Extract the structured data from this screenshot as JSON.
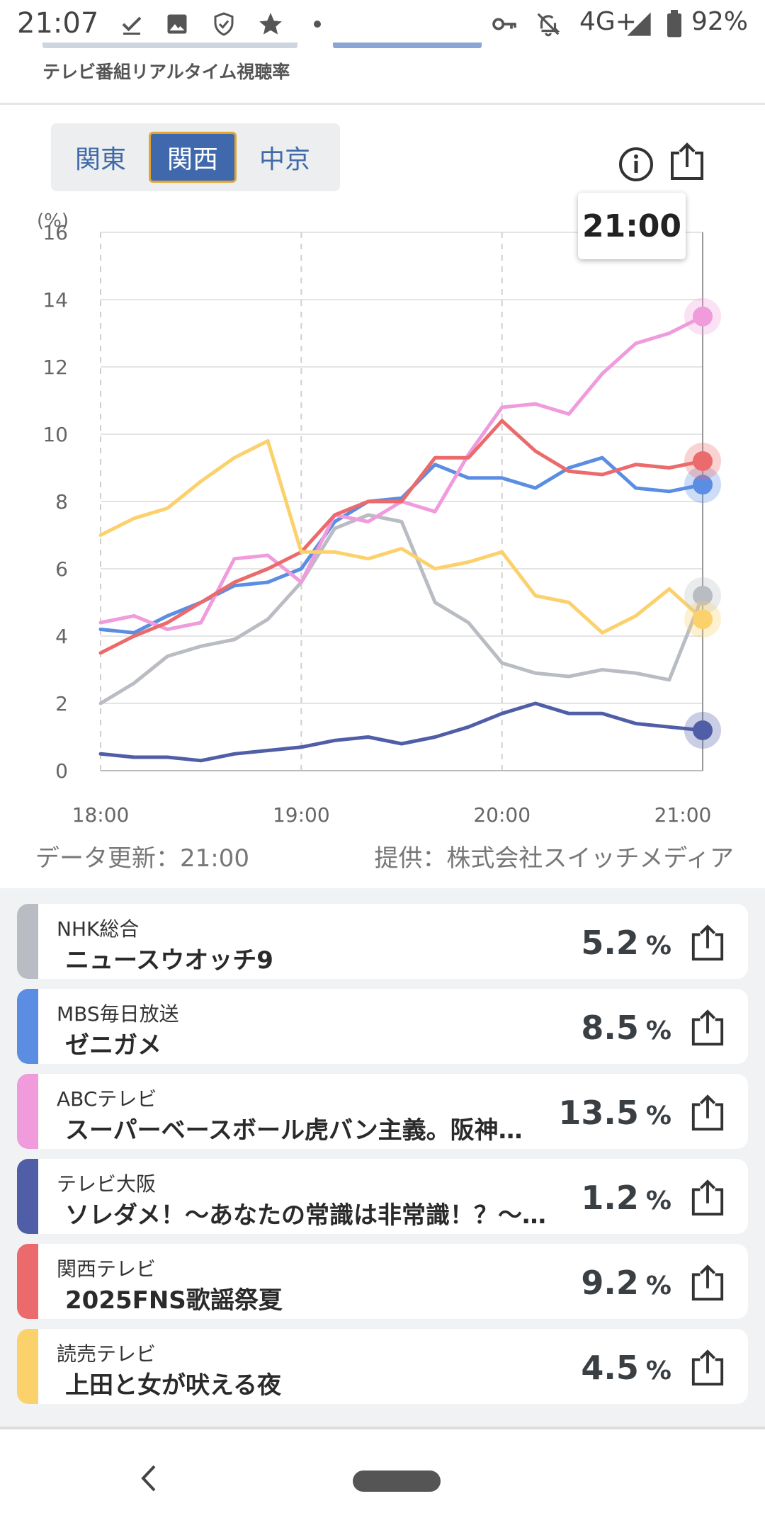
{
  "status_bar": {
    "time": "21:07",
    "network": "4G+",
    "battery": "92%",
    "left_icons": [
      "download-done-icon",
      "image-icon",
      "shield-icon",
      "star-icon",
      "dot-icon"
    ],
    "right_icons": [
      "key-icon",
      "bell-off-icon",
      "signal-icon",
      "battery-icon"
    ]
  },
  "header": {
    "subtitle": "テレビ番組リアルタイム視聴率"
  },
  "region_tabs": [
    {
      "label": "関東",
      "active": false
    },
    {
      "label": "関西",
      "active": true
    },
    {
      "label": "中京",
      "active": false
    }
  ],
  "tooltip_time": "21:00",
  "chart_data": {
    "type": "line",
    "ylabel": "(%)",
    "ylim": [
      0,
      16
    ],
    "y_ticks": [
      "16",
      "14",
      "12",
      "10",
      "8",
      "6",
      "4",
      "2",
      "0"
    ],
    "x_ticks": [
      "18:00",
      "19:00",
      "20:00",
      "21:00"
    ],
    "x": [
      "18:00",
      "18:10",
      "18:20",
      "18:30",
      "18:40",
      "18:50",
      "19:00",
      "19:10",
      "19:20",
      "19:30",
      "19:40",
      "19:50",
      "20:00",
      "20:10",
      "20:20",
      "20:30",
      "20:40",
      "20:50",
      "21:00"
    ],
    "series": [
      {
        "color": "#b9bcc2",
        "values": [
          2.0,
          2.6,
          3.4,
          3.7,
          3.9,
          4.5,
          5.6,
          7.2,
          7.6,
          7.4,
          5.0,
          4.4,
          3.2,
          2.9,
          2.8,
          3.0,
          2.9,
          2.7,
          5.2
        ]
      },
      {
        "color": "#5b8de3",
        "values": [
          4.2,
          4.1,
          4.6,
          5.0,
          5.5,
          5.6,
          6.0,
          7.4,
          8.0,
          8.1,
          9.1,
          8.7,
          8.7,
          8.4,
          9.0,
          9.3,
          8.4,
          8.3,
          8.5
        ]
      },
      {
        "color": "#f09bdc",
        "values": [
          4.4,
          4.6,
          4.2,
          4.4,
          6.3,
          6.4,
          5.6,
          7.6,
          7.4,
          8.0,
          7.7,
          9.4,
          10.8,
          10.9,
          10.6,
          11.8,
          12.7,
          13.0,
          13.5
        ]
      },
      {
        "color": "#4f5ea6",
        "values": [
          0.5,
          0.4,
          0.4,
          0.3,
          0.5,
          0.6,
          0.7,
          0.9,
          1.0,
          0.8,
          1.0,
          1.3,
          1.7,
          2.0,
          1.7,
          1.7,
          1.4,
          1.3,
          1.2
        ]
      },
      {
        "color": "#eb6a6b",
        "values": [
          3.5,
          4.0,
          4.4,
          5.0,
          5.6,
          6.0,
          6.5,
          7.6,
          8.0,
          8.0,
          9.3,
          9.3,
          10.4,
          9.5,
          8.9,
          8.8,
          9.1,
          9.0,
          9.2
        ]
      },
      {
        "color": "#fbd16b",
        "values": [
          7.0,
          7.5,
          7.8,
          8.6,
          9.3,
          9.8,
          6.5,
          6.5,
          6.3,
          6.6,
          6.0,
          6.2,
          6.5,
          5.2,
          5.0,
          4.1,
          4.6,
          5.4,
          4.5
        ]
      }
    ]
  },
  "footer": {
    "updated": "データ更新：21:00",
    "provider": "提供：株式会社スイッチメディア"
  },
  "programs": [
    {
      "channel": "NHK総合",
      "program": "ニュースウオッチ9",
      "rating": "5.2",
      "unit": "%",
      "color": "#b9bcc2"
    },
    {
      "channel": "MBS毎日放送",
      "program": "ゼニガメ",
      "rating": "8.5",
      "unit": "%",
      "color": "#5b8de3"
    },
    {
      "channel": "ABCテレビ",
      "program": "スーパーベースボール虎バン主義。阪神…",
      "rating": "13.5",
      "unit": "%",
      "color": "#f09bdc"
    },
    {
      "channel": "テレビ大阪",
      "program": "ソレダメ！～あなたの常識は非常識！？～…",
      "rating": "1.2",
      "unit": "%",
      "color": "#4f5ea6"
    },
    {
      "channel": "関西テレビ",
      "program": "2025FNS歌謡祭夏",
      "rating": "9.2",
      "unit": "%",
      "color": "#eb6a6b"
    },
    {
      "channel": "読売テレビ",
      "program": "上田と女が吠える夜",
      "rating": "4.5",
      "unit": "%",
      "color": "#fbd16b"
    }
  ]
}
